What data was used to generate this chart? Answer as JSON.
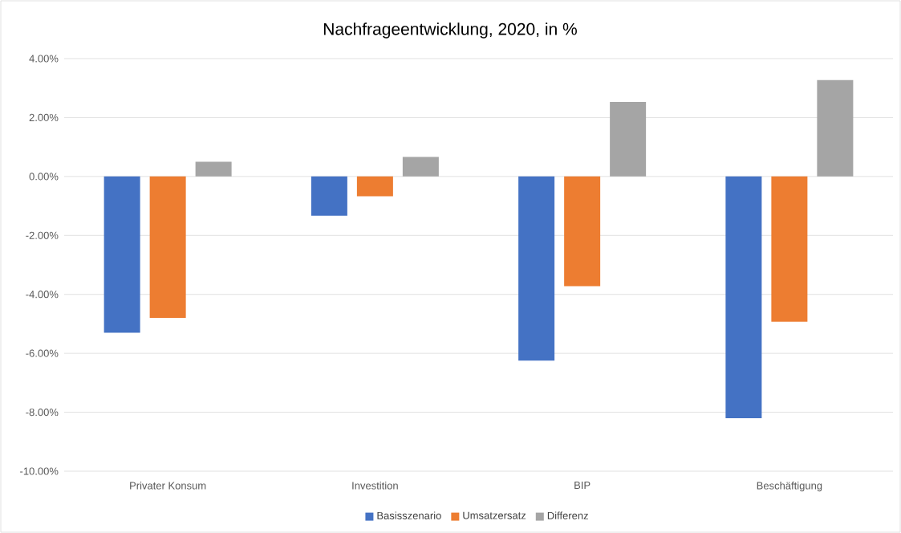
{
  "chart_data": {
    "type": "bar",
    "title": "Nachfrageentwicklung, 2020, in %",
    "categories": [
      "Privater Konsum",
      "Investition",
      "BIP",
      "Beschäftigung"
    ],
    "series": [
      {
        "name": "Basisszenario",
        "color": "#4472c4",
        "values": [
          -5.3,
          -1.33,
          -6.25,
          -8.2
        ]
      },
      {
        "name": "Umsatzersatz",
        "color": "#ed7d31",
        "values": [
          -4.8,
          -0.67,
          -3.72,
          -4.93
        ]
      },
      {
        "name": "Differenz",
        "color": "#a5a5a5",
        "values": [
          0.5,
          0.66,
          2.53,
          3.27
        ]
      }
    ],
    "ylim": [
      -10,
      4
    ],
    "yticks": [
      {
        "value": -10,
        "label": "-10.00%"
      },
      {
        "value": -8,
        "label": "-8.00%"
      },
      {
        "value": -6,
        "label": "-6.00%"
      },
      {
        "value": -4,
        "label": "-4.00%"
      },
      {
        "value": -2,
        "label": "-2.00%"
      },
      {
        "value": 0,
        "label": "0.00%"
      },
      {
        "value": 2,
        "label": "2.00%"
      },
      {
        "value": 4,
        "label": "4.00%"
      }
    ],
    "grid": "y",
    "legend": "bottom"
  }
}
